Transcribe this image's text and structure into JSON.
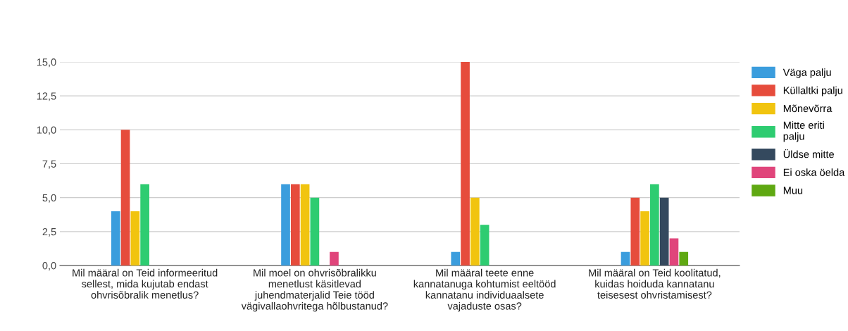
{
  "chart_data": {
    "type": "bar",
    "categories": [
      "Mil määral on Teid informeeritud\nsellest, mida kujutab endast\nohvrisõbralik menetlus?",
      "Mil moel on ohvrisõbralikku\nmenetlust käsitlevad\njuhendmaterjalid Teie tööd\nvägivallaohvritega hõlbustanud?",
      "Mil määral teete enne\nkannatanuga kohtumist eeltööd\nkannatanu individuaalsete\nvajaduste osas?",
      "Mil määral on Teid koolitatud,\nkuidas hoiduda kannatanu\nteisesest ohvristamisest?"
    ],
    "series": [
      {
        "name": "Väga palju",
        "color": "#3b9ddd",
        "values": [
          4,
          6,
          1,
          1
        ]
      },
      {
        "name": "Küllaltki palju",
        "color": "#e64c3c",
        "values": [
          10,
          6,
          15,
          5
        ]
      },
      {
        "name": "Mõnevõrra",
        "color": "#f1c40f",
        "values": [
          4,
          6,
          5,
          4
        ]
      },
      {
        "name": "Mitte eriti\npalju",
        "color": "#2ecc71",
        "values": [
          6,
          5,
          3,
          6
        ]
      },
      {
        "name": "Üldse mitte",
        "color": "#34495e",
        "values": [
          0,
          0,
          0,
          5
        ]
      },
      {
        "name": "Ei oska öelda",
        "color": "#e0457b",
        "values": [
          0,
          1,
          0,
          2
        ]
      },
      {
        "name": "Muu",
        "color": "#5fa812",
        "values": [
          0,
          0,
          0,
          1
        ]
      }
    ],
    "ylim": [
      0,
      15
    ],
    "yticks": [
      {
        "value": 0,
        "label": "0,0"
      },
      {
        "value": 2.5,
        "label": "2,5"
      },
      {
        "value": 5,
        "label": "5,0"
      },
      {
        "value": 7.5,
        "label": "7,5"
      },
      {
        "value": 10,
        "label": "10,0"
      },
      {
        "value": 12.5,
        "label": "12,5"
      },
      {
        "value": 15,
        "label": "15,0"
      }
    ],
    "grid": "y",
    "legend": "right"
  }
}
